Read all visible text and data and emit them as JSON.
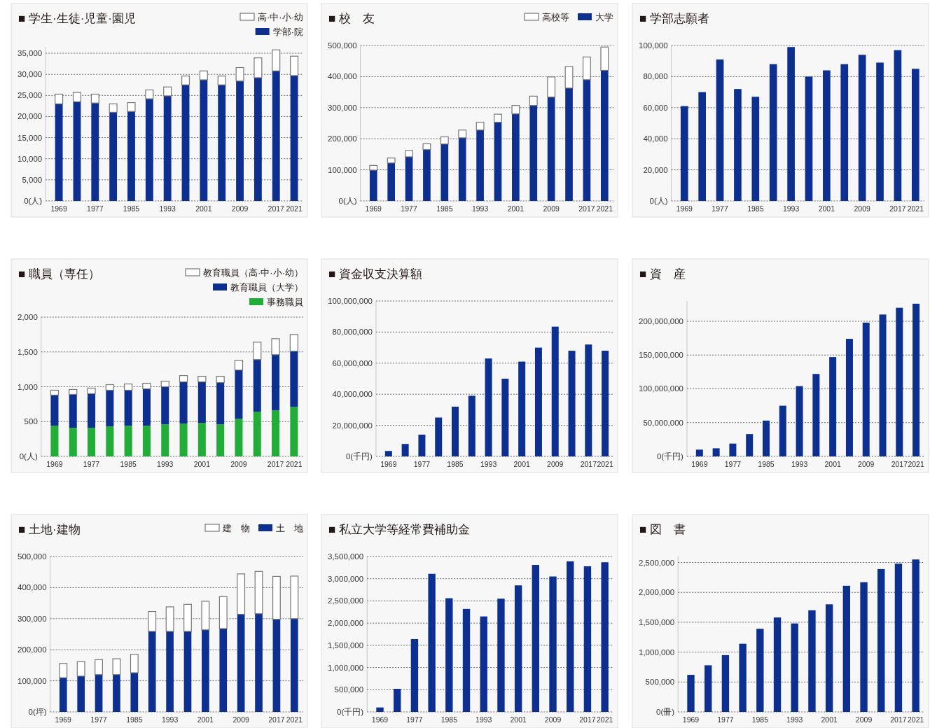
{
  "chart_data": [
    {
      "type": "bar",
      "title": "■ 学生·生徒·児童·園児",
      "stacked": true,
      "grid": "y",
      "legend": "top right",
      "categories": [
        "1969",
        null,
        "1977",
        null,
        "1985",
        null,
        "1993",
        null,
        "2001",
        null,
        "2009",
        null,
        "2017",
        "2021"
      ],
      "ylim": [
        0,
        36500
      ],
      "yticks": [
        {
          "value": 0,
          "label": "0(人)"
        },
        {
          "value": 5000,
          "label": "5,000"
        },
        {
          "value": 10000,
          "label": "10,000"
        },
        {
          "value": 15000,
          "label": "15,000"
        },
        {
          "value": 20000,
          "label": "20,000"
        },
        {
          "value": 25000,
          "label": "25,000"
        },
        {
          "value": 30000,
          "label": "30,000"
        },
        {
          "value": 35000,
          "label": "35,000"
        }
      ],
      "series": [
        {
          "name": "学部·院",
          "color": "#0d2f8f",
          "values": [
            23000,
            23500,
            23200,
            21000,
            21200,
            24200,
            24900,
            27500,
            28700,
            27500,
            28400,
            29200,
            30800,
            29700
          ]
        },
        {
          "name": "高·中·小·幼",
          "color": "#ffffff",
          "values": [
            2300,
            2200,
            2100,
            2000,
            2100,
            2100,
            2100,
            2100,
            2100,
            2100,
            3200,
            4700,
            5000,
            4600
          ]
        }
      ]
    },
    {
      "type": "bar",
      "title": "■ 校　友",
      "stacked": true,
      "grid": "y",
      "legend": "top right",
      "categories": [
        "1969",
        null,
        "1977",
        null,
        "1985",
        null,
        "1993",
        null,
        "2001",
        null,
        "2009",
        null,
        "2017",
        "2021"
      ],
      "ylim": [
        0,
        500000
      ],
      "yticks": [
        {
          "value": 0,
          "label": "0(人)"
        },
        {
          "value": 100000,
          "label": "100,000"
        },
        {
          "value": 200000,
          "label": "200,000"
        },
        {
          "value": 300000,
          "label": "300,000"
        },
        {
          "value": 400000,
          "label": "400,000"
        },
        {
          "value": 500000,
          "label": "500,000"
        }
      ],
      "series": [
        {
          "name": "大学",
          "color": "#0d2f8f",
          "values": [
            99000,
            122000,
            142000,
            165000,
            183000,
            203000,
            228000,
            253000,
            280000,
            307000,
            334000,
            363000,
            390000,
            420000
          ]
        },
        {
          "name": "高校等",
          "color": "#ffffff",
          "values": [
            15000,
            16000,
            20000,
            19000,
            23000,
            25000,
            25000,
            26000,
            27000,
            30000,
            65000,
            69000,
            73000,
            75000
          ]
        }
      ]
    },
    {
      "type": "bar",
      "title": "■ 学部志願者",
      "grid": "y",
      "categories": [
        "1969",
        null,
        "1977",
        null,
        "1985",
        null,
        "1993",
        null,
        "2001",
        null,
        "2009",
        null,
        "2017",
        "2021"
      ],
      "ylim": [
        0,
        100000
      ],
      "yticks": [
        {
          "value": 0,
          "label": "0(人)"
        },
        {
          "value": 20000,
          "label": "20,000"
        },
        {
          "value": 40000,
          "label": "40,000"
        },
        {
          "value": 60000,
          "label": "60,000"
        },
        {
          "value": 80000,
          "label": "80,000"
        },
        {
          "value": 100000,
          "label": "100,000"
        }
      ],
      "series": [
        {
          "color": "#0d2f8f",
          "values": [
            61000,
            70000,
            91000,
            72000,
            67000,
            88000,
            99000,
            80000,
            84000,
            88000,
            94000,
            89000,
            97000,
            85000
          ]
        }
      ]
    },
    {
      "type": "bar",
      "title": "■ 職員（専任）",
      "stacked": true,
      "grid": "y",
      "legend": "top right",
      "categories": [
        "1969",
        null,
        "1977",
        null,
        "1985",
        null,
        "1993",
        null,
        "2001",
        null,
        "2009",
        null,
        "2017",
        "2021"
      ],
      "ylim": [
        0,
        2000
      ],
      "yticks": [
        {
          "value": 0,
          "label": "0(人)"
        },
        {
          "value": 500,
          "label": "500"
        },
        {
          "value": 1000,
          "label": "1,000"
        },
        {
          "value": 1500,
          "label": "1,500"
        },
        {
          "value": 2000,
          "label": "2,000"
        }
      ],
      "series": [
        {
          "name": "事務職員",
          "color": "#22ac38",
          "values": [
            440,
            410,
            410,
            430,
            440,
            440,
            460,
            470,
            480,
            460,
            540,
            640,
            660,
            710
          ]
        },
        {
          "name": "教育職員（大学）",
          "color": "#0d2f8f",
          "values": [
            440,
            480,
            490,
            520,
            510,
            530,
            540,
            600,
            590,
            600,
            700,
            750,
            800,
            800
          ]
        },
        {
          "name": "教育職員（高·中·小·幼）",
          "color": "#ffffff",
          "values": [
            70,
            70,
            80,
            80,
            90,
            80,
            80,
            90,
            80,
            90,
            140,
            250,
            230,
            240
          ]
        }
      ]
    },
    {
      "type": "bar",
      "title": "■ 資金収支決算額",
      "grid": "y",
      "categories": [
        "1969",
        null,
        "1977",
        null,
        "1985",
        null,
        "1993",
        null,
        "2001",
        null,
        "2009",
        null,
        "2017",
        "2021"
      ],
      "ylim": [
        0,
        100000000
      ],
      "yticks": [
        {
          "value": 0,
          "label": "0(千円)"
        },
        {
          "value": 20000000,
          "label": "20,000,000"
        },
        {
          "value": 40000000,
          "label": "40,000,000"
        },
        {
          "value": 60000000,
          "label": "60,000,000"
        },
        {
          "value": 80000000,
          "label": "80,000,000"
        },
        {
          "value": 100000000,
          "label": "100,000,000"
        }
      ],
      "series": [
        {
          "color": "#0d2f8f",
          "values": [
            3500000,
            8000000,
            14000000,
            25000000,
            32000000,
            39000000,
            63000000,
            50000000,
            61000000,
            70000000,
            83500000,
            68000000,
            72000000,
            68000000
          ]
        }
      ]
    },
    {
      "type": "bar",
      "title": "■ 資　産",
      "grid": "y",
      "categories": [
        "1969",
        null,
        "1977",
        null,
        "1985",
        null,
        "1993",
        null,
        "2001",
        null,
        "2009",
        null,
        "2017",
        "2021"
      ],
      "ylim": [
        0,
        230000000
      ],
      "yticks": [
        {
          "value": 0,
          "label": "0(千円)"
        },
        {
          "value": 50000000,
          "label": "50,000,000"
        },
        {
          "value": 100000000,
          "label": "100,000,000"
        },
        {
          "value": 150000000,
          "label": "150,000,000"
        },
        {
          "value": 200000000,
          "label": "200,000,000"
        }
      ],
      "series": [
        {
          "color": "#0d2f8f",
          "values": [
            10000000,
            12000000,
            19000000,
            33000000,
            53000000,
            75000000,
            104000000,
            122000000,
            147000000,
            174000000,
            198000000,
            210000000,
            220000000,
            226000000
          ]
        }
      ]
    },
    {
      "type": "bar",
      "title": "■ 土地·建物",
      "stacked": true,
      "grid": "y",
      "legend": "top right",
      "categories": [
        "1969",
        null,
        "1977",
        null,
        "1985",
        null,
        "1993",
        null,
        "2001",
        null,
        "2009",
        null,
        "2017",
        "2021"
      ],
      "ylim": [
        0,
        500000
      ],
      "yticks": [
        {
          "value": 0,
          "label": "0(坪)"
        },
        {
          "value": 100000,
          "label": "100,000"
        },
        {
          "value": 200000,
          "label": "200,000"
        },
        {
          "value": 300000,
          "label": "300,000"
        },
        {
          "value": 400000,
          "label": "400,000"
        },
        {
          "value": 500000,
          "label": "500,000"
        }
      ],
      "series": [
        {
          "name": "土　地",
          "color": "#0d2f8f",
          "values": [
            110000,
            115000,
            120000,
            120000,
            126000,
            259000,
            259000,
            259000,
            264000,
            268000,
            314000,
            316000,
            298000,
            300000
          ]
        },
        {
          "name": "建　物",
          "color": "#ffffff",
          "values": [
            46000,
            47000,
            48000,
            51000,
            59000,
            64000,
            79000,
            87000,
            92000,
            103000,
            130000,
            136000,
            138000,
            137000
          ]
        }
      ]
    },
    {
      "type": "bar",
      "title": "■ 私立大学等経常費補助金",
      "grid": "y",
      "categories": [
        "1969",
        null,
        "1977",
        null,
        "1985",
        null,
        "1993",
        null,
        "2001",
        null,
        "2009",
        null,
        "2017",
        "2021"
      ],
      "ylim": [
        0,
        3500000
      ],
      "yticks": [
        {
          "value": 0,
          "label": "0(千円)"
        },
        {
          "value": 500000,
          "label": "500,000"
        },
        {
          "value": 1000000,
          "label": "1,000,000"
        },
        {
          "value": 1500000,
          "label": "1,500,000"
        },
        {
          "value": 2000000,
          "label": "2,000,000"
        },
        {
          "value": 2500000,
          "label": "2,500,000"
        },
        {
          "value": 3000000,
          "label": "3,000,000"
        },
        {
          "value": 3500000,
          "label": "3,500,000"
        }
      ],
      "series": [
        {
          "color": "#0d2f8f",
          "values": [
            100000,
            520000,
            1640000,
            3110000,
            2560000,
            2320000,
            2150000,
            2550000,
            2850000,
            3310000,
            3050000,
            3390000,
            3280000,
            3370000
          ]
        }
      ]
    },
    {
      "type": "bar",
      "title": "■ 図　書",
      "grid": "y",
      "categories": [
        "1969",
        null,
        "1977",
        null,
        "1985",
        null,
        "1993",
        null,
        "2001",
        null,
        "2009",
        null,
        "2017",
        "2021"
      ],
      "ylim": [
        0,
        2600000
      ],
      "yticks": [
        {
          "value": 0,
          "label": "0(冊)"
        },
        {
          "value": 500000,
          "label": "500,000"
        },
        {
          "value": 1000000,
          "label": "1,000,000"
        },
        {
          "value": 1500000,
          "label": "1,500,000"
        },
        {
          "value": 2000000,
          "label": "2,000,000"
        },
        {
          "value": 2500000,
          "label": "2,500,000"
        }
      ],
      "series": [
        {
          "color": "#0d2f8f",
          "values": [
            620000,
            780000,
            950000,
            1140000,
            1390000,
            1580000,
            1480000,
            1700000,
            1800000,
            2110000,
            2170000,
            2390000,
            2480000,
            2550000
          ]
        }
      ]
    }
  ]
}
